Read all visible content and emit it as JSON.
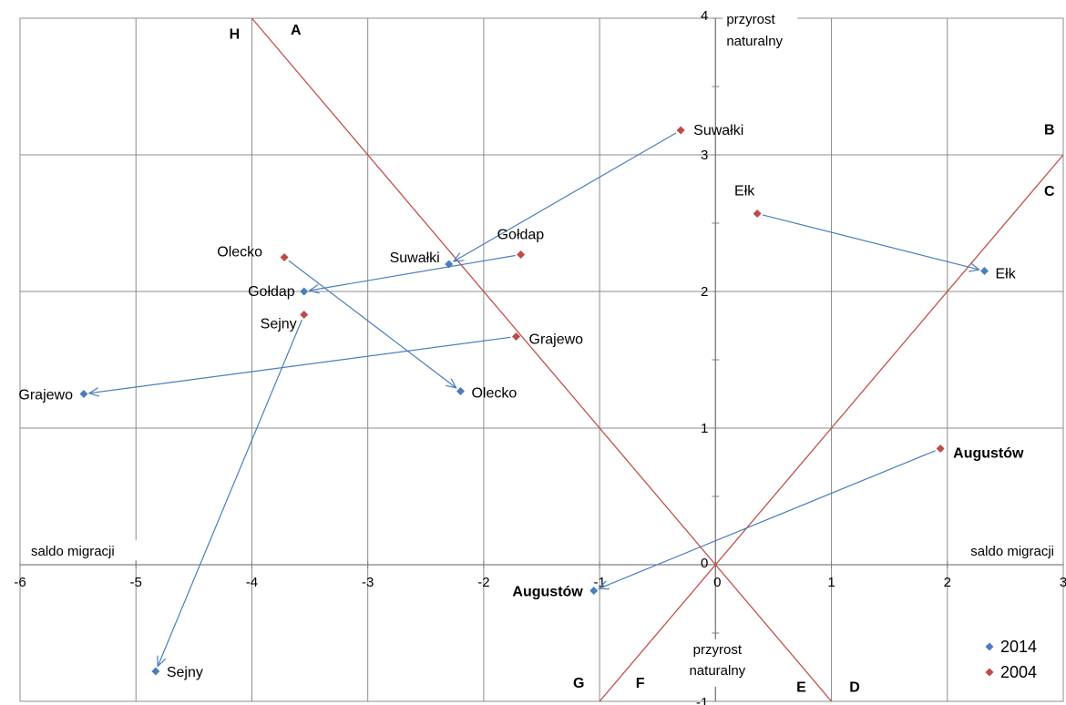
{
  "chart_data": {
    "type": "scatter",
    "xlim": [
      -6,
      3
    ],
    "ylim": [
      -1,
      4
    ],
    "x_ticks": [
      "-6",
      "-5",
      "-4",
      "-3",
      "-2",
      "-1",
      "0",
      "1",
      "2",
      "3"
    ],
    "y_ticks": [
      "-1",
      "0",
      "1",
      "2",
      "3",
      "4"
    ],
    "grid": true,
    "axis_titles": {
      "x_left": "saldo migracji",
      "x_right": "saldo migracji",
      "y_top": [
        "przyrost",
        "naturalny"
      ],
      "y_bottom": [
        "przyrost",
        "naturalny"
      ]
    },
    "colors": {
      "2014": "#4a7ebb",
      "2004": "#be4b48",
      "reference_lines": "#c0504d",
      "arrows": "#4a7ebb",
      "grid": "#8c8c8c"
    },
    "legend": {
      "position": "bottom-right",
      "entries": [
        "2014",
        "2004"
      ]
    },
    "series": [
      {
        "name": "2014",
        "points": [
          {
            "label": "Suwałki",
            "x": -2.3,
            "y": 2.2
          },
          {
            "label": "Gołdap",
            "x": -3.55,
            "y": 2.0
          },
          {
            "label": "Grajewo",
            "x": -5.45,
            "y": 1.25
          },
          {
            "label": "Olecko",
            "x": -2.2,
            "y": 1.27
          },
          {
            "label": "Sejny",
            "x": -4.83,
            "y": -0.78
          },
          {
            "label": "Ełk",
            "x": 2.32,
            "y": 2.15
          },
          {
            "label": "Augustów",
            "x": -1.05,
            "y": -0.19
          }
        ]
      },
      {
        "name": "2004",
        "points": [
          {
            "label": "Suwałki",
            "x": -0.3,
            "y": 3.18
          },
          {
            "label": "Gołdap",
            "x": -1.68,
            "y": 2.27
          },
          {
            "label": "Grajewo",
            "x": -1.72,
            "y": 1.67
          },
          {
            "label": "Olecko",
            "x": -3.72,
            "y": 2.25
          },
          {
            "label": "Sejny",
            "x": -3.55,
            "y": 1.83
          },
          {
            "label": "Ełk",
            "x": 0.36,
            "y": 2.57
          },
          {
            "label": "Augustów",
            "x": 1.94,
            "y": 0.85
          }
        ]
      }
    ],
    "arrows": [
      {
        "city": "Suwałki",
        "from": [
          -0.3,
          3.18
        ],
        "to": [
          -2.3,
          2.2
        ]
      },
      {
        "city": "Gołdap",
        "from": [
          -1.68,
          2.27
        ],
        "to": [
          -3.55,
          2.0
        ]
      },
      {
        "city": "Grajewo",
        "from": [
          -1.72,
          1.67
        ],
        "to": [
          -5.45,
          1.25
        ]
      },
      {
        "city": "Olecko",
        "from": [
          -3.72,
          2.25
        ],
        "to": [
          -2.2,
          1.27
        ]
      },
      {
        "city": "Sejny",
        "from": [
          -3.55,
          1.83
        ],
        "to": [
          -4.83,
          -0.78
        ]
      },
      {
        "city": "Ełk",
        "from": [
          0.36,
          2.57
        ],
        "to": [
          2.32,
          2.15
        ]
      },
      {
        "city": "Augustów",
        "from": [
          1.94,
          0.85
        ],
        "to": [
          -1.05,
          -0.19
        ]
      }
    ],
    "reference_lines": [
      {
        "name": "y=-x",
        "from": [
          -4,
          4
        ],
        "to": [
          1,
          -1
        ]
      },
      {
        "name": "y=x",
        "from": [
          -1,
          -1
        ],
        "to": [
          3,
          3
        ]
      }
    ],
    "region_labels": [
      {
        "text": "H",
        "x": -4.15,
        "y": 3.85
      },
      {
        "text": "A",
        "x": -3.62,
        "y": 3.88
      },
      {
        "text": "B",
        "x": 2.88,
        "y": 3.15
      },
      {
        "text": "C",
        "x": 2.88,
        "y": 2.7
      },
      {
        "text": "D",
        "x": 1.2,
        "y": -0.93
      },
      {
        "text": "E",
        "x": 0.74,
        "y": -0.93
      },
      {
        "text": "F",
        "x": -0.65,
        "y": -0.9
      },
      {
        "text": "G",
        "x": -1.18,
        "y": -0.9
      }
    ]
  }
}
